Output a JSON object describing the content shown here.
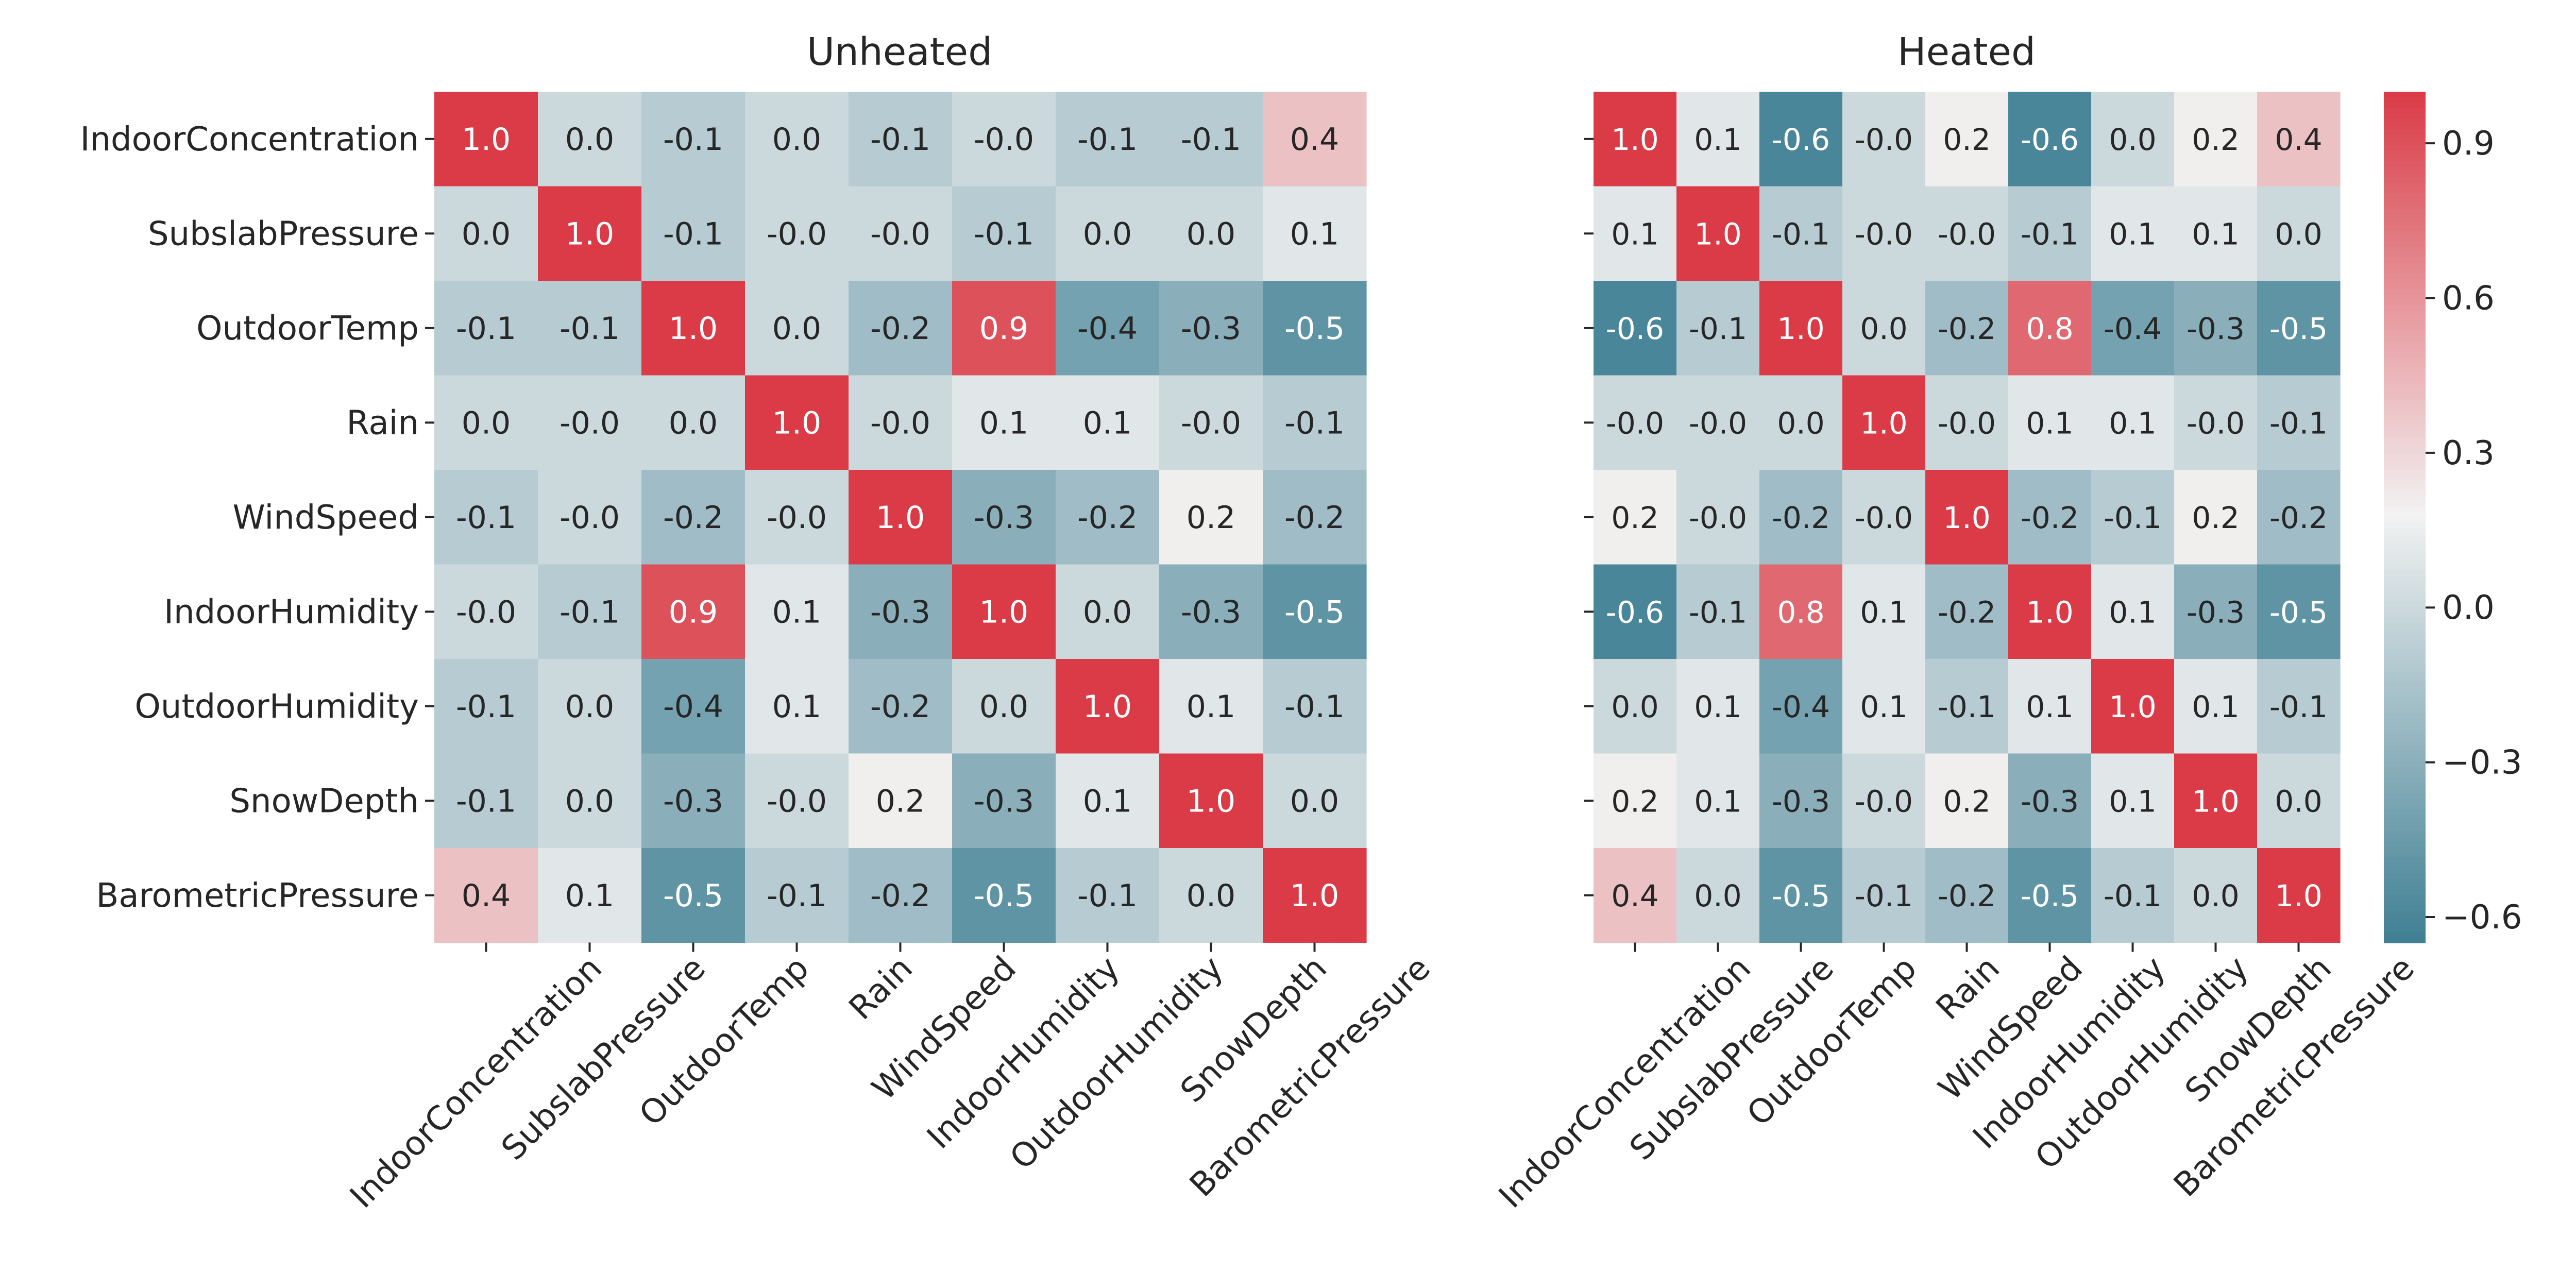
{
  "chart_data": [
    {
      "type": "heatmap",
      "title": "Unheated",
      "labels": [
        "IndoorConcentration",
        "SubslabPressure",
        "OutdoorTemp",
        "Rain",
        "WindSpeed",
        "IndoorHumidity",
        "OutdoorHumidity",
        "SnowDepth",
        "BarometricPressure"
      ],
      "matrix": [
        [
          "1.0",
          "0.0",
          "-0.1",
          "0.0",
          "-0.1",
          "-0.0",
          "-0.1",
          "-0.1",
          "0.4"
        ],
        [
          "0.0",
          "1.0",
          "-0.1",
          "-0.0",
          "-0.0",
          "-0.1",
          "0.0",
          "0.0",
          "0.1"
        ],
        [
          "-0.1",
          "-0.1",
          "1.0",
          "0.0",
          "-0.2",
          "0.9",
          "-0.4",
          "-0.3",
          "-0.5"
        ],
        [
          "0.0",
          "-0.0",
          "0.0",
          "1.0",
          "-0.0",
          "0.1",
          "0.1",
          "-0.0",
          "-0.1"
        ],
        [
          "-0.1",
          "-0.0",
          "-0.2",
          "-0.0",
          "1.0",
          "-0.3",
          "-0.2",
          "0.2",
          "-0.2"
        ],
        [
          "-0.0",
          "-0.1",
          "0.9",
          "0.1",
          "-0.3",
          "1.0",
          "0.0",
          "-0.3",
          "-0.5"
        ],
        [
          "-0.1",
          "0.0",
          "-0.4",
          "0.1",
          "-0.2",
          "0.0",
          "1.0",
          "0.1",
          "-0.1"
        ],
        [
          "-0.1",
          "0.0",
          "-0.3",
          "-0.0",
          "0.2",
          "-0.3",
          "0.1",
          "1.0",
          "0.0"
        ],
        [
          "0.4",
          "0.1",
          "-0.5",
          "-0.1",
          "-0.2",
          "-0.5",
          "-0.1",
          "0.0",
          "1.0"
        ]
      ]
    },
    {
      "type": "heatmap",
      "title": "Heated",
      "labels": [
        "IndoorConcentration",
        "SubslabPressure",
        "OutdoorTemp",
        "Rain",
        "WindSpeed",
        "IndoorHumidity",
        "OutdoorHumidity",
        "SnowDepth",
        "BarometricPressure"
      ],
      "matrix": [
        [
          "1.0",
          "0.1",
          "-0.6",
          "-0.0",
          "0.2",
          "-0.6",
          "0.0",
          "0.2",
          "0.4"
        ],
        [
          "0.1",
          "1.0",
          "-0.1",
          "-0.0",
          "-0.0",
          "-0.1",
          "0.1",
          "0.1",
          "0.0"
        ],
        [
          "-0.6",
          "-0.1",
          "1.0",
          "0.0",
          "-0.2",
          "0.8",
          "-0.4",
          "-0.3",
          "-0.5"
        ],
        [
          "-0.0",
          "-0.0",
          "0.0",
          "1.0",
          "-0.0",
          "0.1",
          "0.1",
          "-0.0",
          "-0.1"
        ],
        [
          "0.2",
          "-0.0",
          "-0.2",
          "-0.0",
          "1.0",
          "-0.2",
          "-0.1",
          "0.2",
          "-0.2"
        ],
        [
          "-0.6",
          "-0.1",
          "0.8",
          "0.1",
          "-0.2",
          "1.0",
          "0.1",
          "-0.3",
          "-0.5"
        ],
        [
          "0.0",
          "0.1",
          "-0.4",
          "0.1",
          "-0.1",
          "0.1",
          "1.0",
          "0.1",
          "-0.1"
        ],
        [
          "0.2",
          "0.1",
          "-0.3",
          "-0.0",
          "0.2",
          "-0.3",
          "0.1",
          "1.0",
          "0.0"
        ],
        [
          "0.4",
          "0.0",
          "-0.5",
          "-0.1",
          "-0.2",
          "-0.5",
          "-0.1",
          "0.0",
          "1.0"
        ]
      ]
    }
  ],
  "colorbar": {
    "range": [
      -0.65,
      1.0
    ],
    "ticks": [
      "0.9",
      "0.6",
      "0.3",
      "0.0",
      "−0.3",
      "−0.6"
    ],
    "tick_values": [
      0.9,
      0.6,
      0.3,
      0.0,
      -0.3,
      -0.6
    ],
    "colors": {
      "low": "#3f7f93",
      "mid": "#f2f2f2",
      "high": "#da3b46"
    }
  }
}
